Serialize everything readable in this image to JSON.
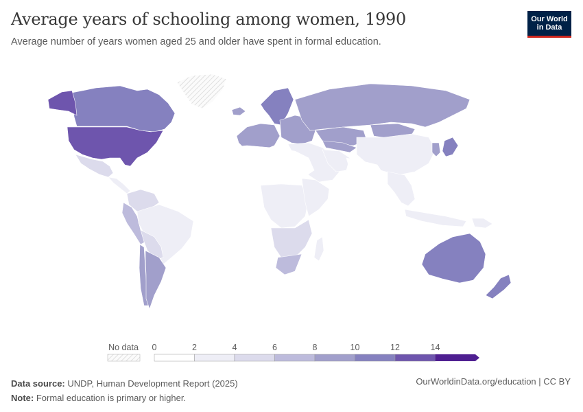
{
  "header": {
    "title": "Average years of schooling among women, 1990",
    "subtitle": "Average number of years women aged 25 and older have spent in formal education."
  },
  "logo": {
    "line1": "Our World",
    "line2": "in Data"
  },
  "legend": {
    "no_data_label": "No data",
    "ticks": [
      "0",
      "2",
      "4",
      "6",
      "8",
      "10",
      "12",
      "14"
    ],
    "colors": [
      "#ffffff",
      "#eeeef6",
      "#dcdbec",
      "#bdbbdc",
      "#a19fcb",
      "#8581bf",
      "#6e55ad",
      "#4f1f91"
    ]
  },
  "footer": {
    "source_label": "Data source:",
    "source_text": "UNDP, Human Development Report (2025)",
    "note_label": "Note:",
    "note_text": "Formal education is primary or higher.",
    "link": "OurWorldinData.org/education | CC BY"
  },
  "map_data": {
    "year": 1990,
    "regions": [
      {
        "name": "Canada",
        "value": 11.5
      },
      {
        "name": "Alaska",
        "value": 13.0
      },
      {
        "name": "United States",
        "value": 13.0
      },
      {
        "name": "Greenland",
        "value": null
      },
      {
        "name": "Mexico",
        "value": 4.5
      },
      {
        "name": "Central America",
        "value": 3.5
      },
      {
        "name": "Colombia & Venezuela",
        "value": 5.0
      },
      {
        "name": "Peru & Ecuador",
        "value": 6.5
      },
      {
        "name": "Brazil",
        "value": 3.5
      },
      {
        "name": "Bolivia & Paraguay",
        "value": 5.5
      },
      {
        "name": "Chile",
        "value": 8.5
      },
      {
        "name": "Argentina",
        "value": 8.5
      },
      {
        "name": "Iceland",
        "value": 8.0
      },
      {
        "name": "Scandinavia",
        "value": 10.5
      },
      {
        "name": "Western Europe",
        "value": 8.0
      },
      {
        "name": "Eastern Europe",
        "value": 9.5
      },
      {
        "name": "Russia",
        "value": 9.0
      },
      {
        "name": "Kazakhstan",
        "value": 8.0
      },
      {
        "name": "Central Asia",
        "value": 9.5
      },
      {
        "name": "Mongolia",
        "value": 8.5
      },
      {
        "name": "China",
        "value": 3.5
      },
      {
        "name": "Japan",
        "value": 10.5
      },
      {
        "name": "Korea",
        "value": 8.0
      },
      {
        "name": "Turkey & Middle East",
        "value": 3.5
      },
      {
        "name": "Iran",
        "value": 3.0
      },
      {
        "name": "South Asia",
        "value": 1.5
      },
      {
        "name": "Southeast Asia",
        "value": 3.5
      },
      {
        "name": "Indonesia",
        "value": 3.0
      },
      {
        "name": "North Africa",
        "value": 1.5
      },
      {
        "name": "West Africa",
        "value": 1.0
      },
      {
        "name": "Central Africa",
        "value": 2.5
      },
      {
        "name": "East Africa",
        "value": 2.0
      },
      {
        "name": "Southern Africa",
        "value": 5.0
      },
      {
        "name": "South Africa",
        "value": 7.0
      },
      {
        "name": "Madagascar",
        "value": 3.0
      },
      {
        "name": "Australia",
        "value": 11.5
      },
      {
        "name": "New Zealand",
        "value": 11.0
      },
      {
        "name": "Papua New Guinea",
        "value": 2.0
      }
    ]
  }
}
